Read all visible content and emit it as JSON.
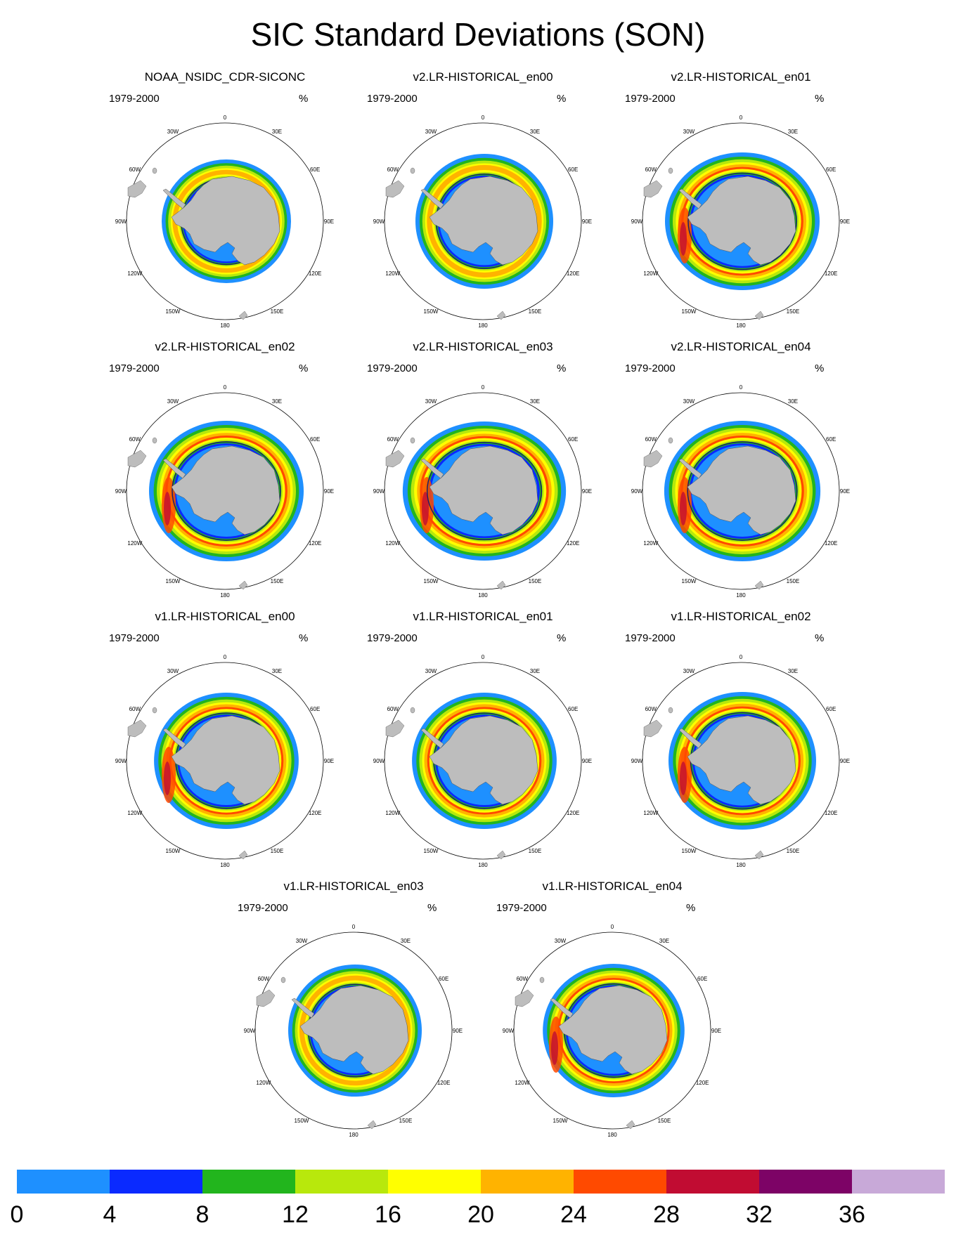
{
  "title": "SIC Standard Deviations (SON)",
  "panels": [
    {
      "title": "NOAA_NSIDC_CDR-SICONC",
      "period": "1979-2000",
      "unit": "%"
    },
    {
      "title": "v2.LR-HISTORICAL_en00",
      "period": "1979-2000",
      "unit": "%"
    },
    {
      "title": "v2.LR-HISTORICAL_en01",
      "period": "1979-2000",
      "unit": "%"
    },
    {
      "title": "v2.LR-HISTORICAL_en02",
      "period": "1979-2000",
      "unit": "%"
    },
    {
      "title": "v2.LR-HISTORICAL_en03",
      "period": "1979-2000",
      "unit": "%"
    },
    {
      "title": "v2.LR-HISTORICAL_en04",
      "period": "1979-2000",
      "unit": "%"
    },
    {
      "title": "v1.LR-HISTORICAL_en00",
      "period": "1979-2000",
      "unit": "%"
    },
    {
      "title": "v1.LR-HISTORICAL_en01",
      "period": "1979-2000",
      "unit": "%"
    },
    {
      "title": "v1.LR-HISTORICAL_en02",
      "period": "1979-2000",
      "unit": "%"
    },
    {
      "title": "v1.LR-HISTORICAL_en03",
      "period": "1979-2000",
      "unit": "%"
    },
    {
      "title": "v1.LR-HISTORICAL_en04",
      "period": "1979-2000",
      "unit": "%"
    }
  ],
  "longitude_labels": [
    "0",
    "30E",
    "60E",
    "90E",
    "120E",
    "150E",
    "180",
    "150W",
    "120W",
    "90W",
    "60W",
    "30W"
  ],
  "colorbar": {
    "labels": [
      "0",
      "4",
      "8",
      "12",
      "16",
      "20",
      "24",
      "28",
      "32",
      "36"
    ],
    "colors": [
      "#1e90ff",
      "#0a2aff",
      "#22b51d",
      "#b8e80c",
      "#ffff00",
      "#ffb300",
      "#ff4a00",
      "#c10c32",
      "#7d0366",
      "#c8a9d8"
    ]
  },
  "land_color": "#bdbdbd"
}
